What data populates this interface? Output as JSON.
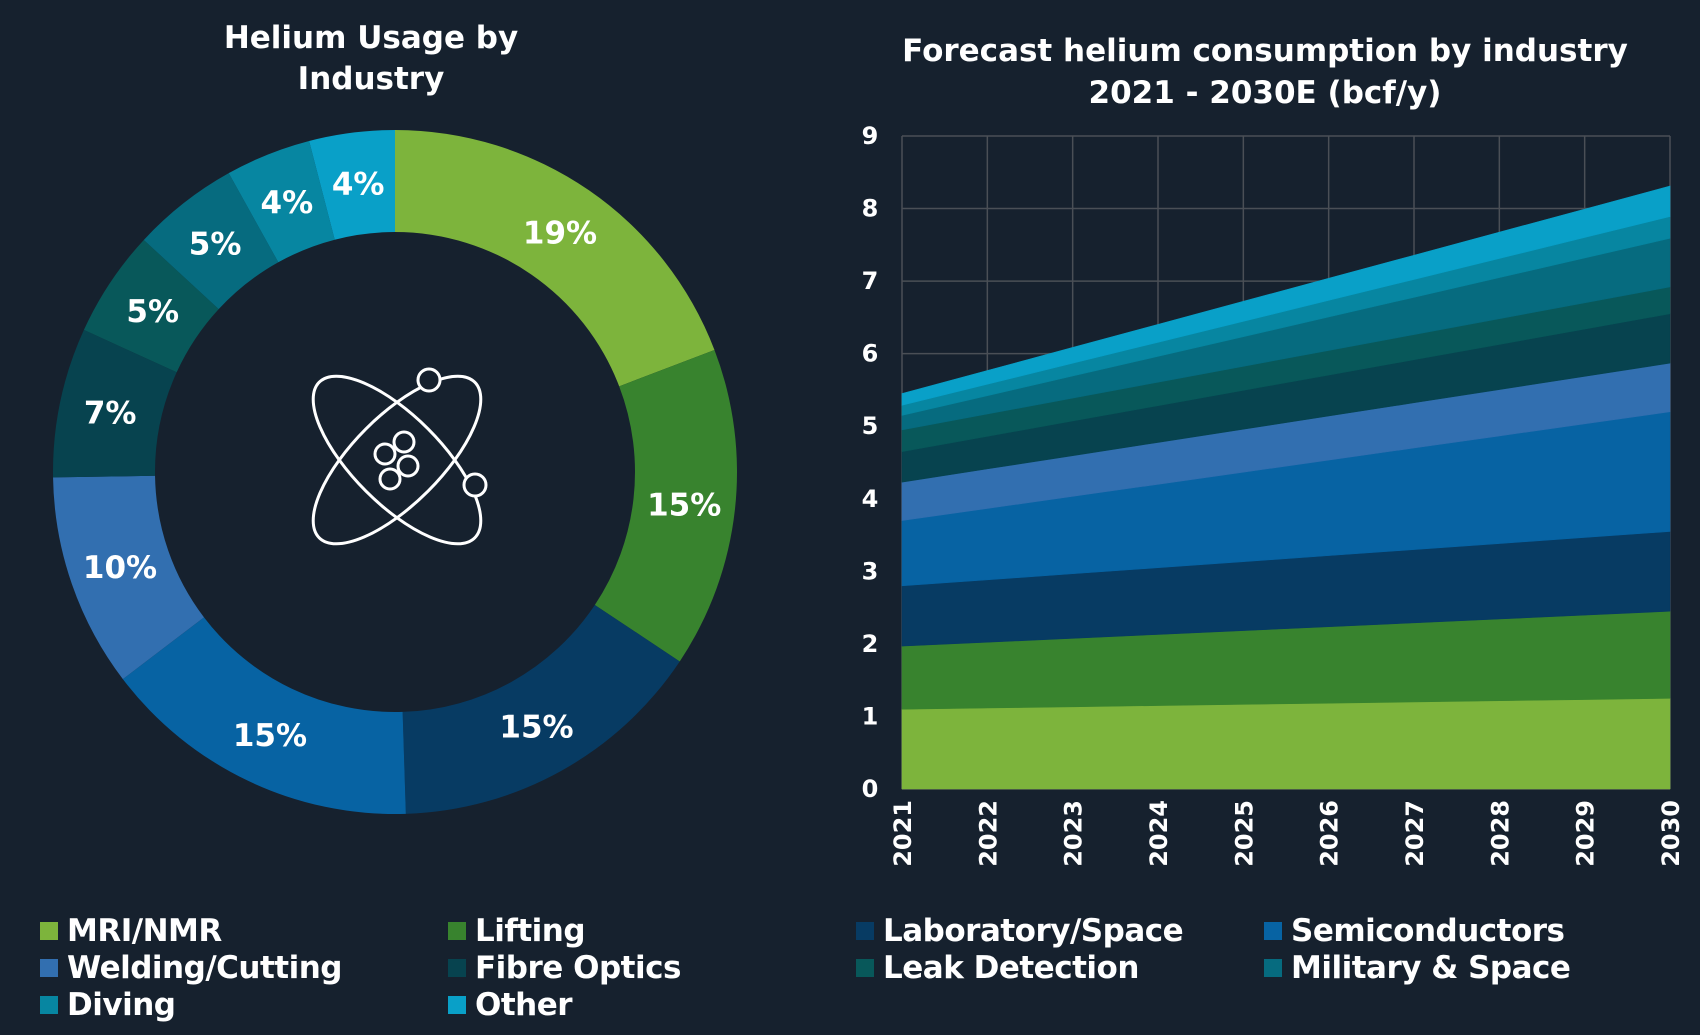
{
  "colors": {
    "background": "#16212e",
    "grid": "#4a4f56",
    "text": "#ffffff",
    "icon": "#ffffff"
  },
  "icon": {
    "name": "atom-icon"
  },
  "legend": [
    {
      "label": "MRI/NMR",
      "color": "#7db43c"
    },
    {
      "label": "Lifting",
      "color": "#38832e"
    },
    {
      "label": "Laboratory/Space",
      "color": "#073b63"
    },
    {
      "label": "Semiconductors",
      "color": "#0763a3"
    },
    {
      "label": "Welding/Cutting",
      "color": "#326fb0"
    },
    {
      "label": "Fibre Optics",
      "color": "#07434f"
    },
    {
      "label": "Leak Detection",
      "color": "#08585a"
    },
    {
      "label": "Military & Space",
      "color": "#066b7f"
    },
    {
      "label": "Diving",
      "color": "#0786a1"
    },
    {
      "label": "Other",
      "color": "#09a0c8"
    }
  ],
  "chart_data": [
    {
      "type": "pie",
      "variant": "donut",
      "title": "Helium Usage by\nIndustry",
      "slices": [
        {
          "name": "MRI/NMR",
          "value": 19,
          "label": "19%",
          "color": "#7db43c"
        },
        {
          "name": "Lifting",
          "value": 15,
          "label": "15%",
          "color": "#38832e"
        },
        {
          "name": "Laboratory/Space",
          "value": 15,
          "label": "15%",
          "color": "#073b63"
        },
        {
          "name": "Semiconductors",
          "value": 15,
          "label": "15%",
          "color": "#0763a3"
        },
        {
          "name": "Welding/Cutting",
          "value": 10,
          "label": "10%",
          "color": "#326fb0"
        },
        {
          "name": "Fibre Optics",
          "value": 7,
          "label": "7%",
          "color": "#07434f"
        },
        {
          "name": "Leak Detection",
          "value": 5,
          "label": "5%",
          "color": "#08585a"
        },
        {
          "name": "Military & Space",
          "value": 5,
          "label": "5%",
          "color": "#066b7f"
        },
        {
          "name": "Diving",
          "value": 4,
          "label": "4%",
          "color": "#0786a1"
        },
        {
          "name": "Other",
          "value": 4,
          "label": "4%",
          "color": "#09a0c8"
        }
      ]
    },
    {
      "type": "area",
      "stacked": true,
      "title": "Forecast helium consumption by industry\n2021 - 2030E (bcf/y)",
      "xlabel": "",
      "ylabel": "",
      "x": [
        "2021",
        "2022",
        "2023",
        "2024",
        "2025",
        "2026",
        "2027",
        "2028",
        "2029",
        "2030"
      ],
      "ylim": [
        0,
        9
      ],
      "yticks": [
        "0",
        "1",
        "2",
        "3",
        "4",
        "5",
        "6",
        "7",
        "8",
        "9"
      ],
      "grid": true,
      "series": [
        {
          "name": "MRI/NMR",
          "color": "#7db43c",
          "start": 1.1,
          "end": 1.25
        },
        {
          "name": "Lifting",
          "color": "#38832e",
          "start": 0.87,
          "end": 1.2
        },
        {
          "name": "Laboratory/Space",
          "color": "#073b63",
          "start": 0.83,
          "end": 1.1
        },
        {
          "name": "Semiconductors",
          "color": "#0763a3",
          "start": 0.9,
          "end": 1.65
        },
        {
          "name": "Welding/Cutting",
          "color": "#326fb0",
          "start": 0.53,
          "end": 0.67
        },
        {
          "name": "Fibre Optics",
          "color": "#07434f",
          "start": 0.42,
          "end": 0.68
        },
        {
          "name": "Leak Detection",
          "color": "#08585a",
          "start": 0.3,
          "end": 0.37
        },
        {
          "name": "Military & Space",
          "color": "#066b7f",
          "start": 0.2,
          "end": 0.67
        },
        {
          "name": "Diving",
          "color": "#0786a1",
          "start": 0.14,
          "end": 0.3
        },
        {
          "name": "Other",
          "color": "#09a0c8",
          "start": 0.16,
          "end": 0.42
        }
      ]
    }
  ]
}
